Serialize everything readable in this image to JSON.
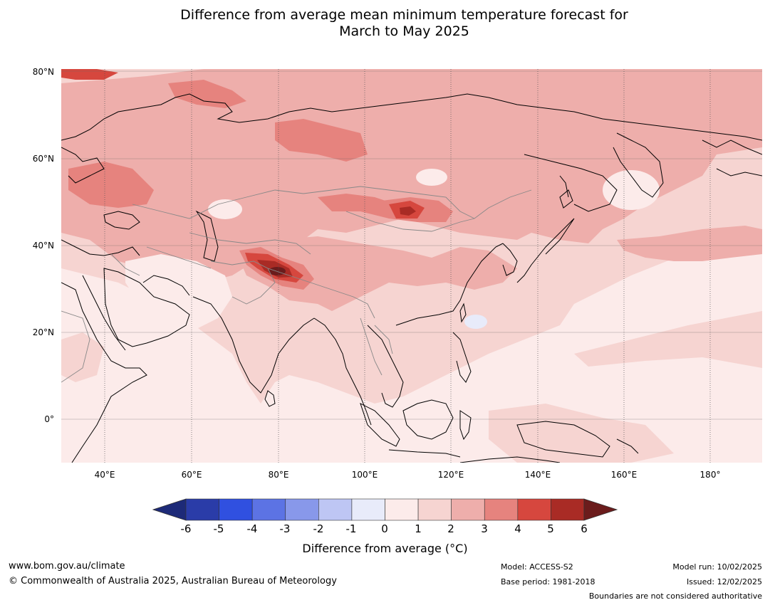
{
  "title": {
    "line1": "Difference from average mean minimum temperature forecast for",
    "line2": "March to May 2025"
  },
  "map": {
    "lat_labels": [
      "80°N",
      "60°N",
      "40°N",
      "20°N",
      "0°"
    ],
    "lon_labels": [
      "40°E",
      "60°E",
      "80°E",
      "100°E",
      "120°E",
      "140°E",
      "160°E",
      "180°"
    ],
    "lat_range": [
      -10,
      80
    ],
    "lon_range": [
      30,
      192
    ],
    "shade_colors": {
      "c0to1": "#fcebea",
      "c1to2": "#f6d4d1",
      "c2to3": "#eeaeab",
      "c3to4": "#e6837e",
      "c4to5": "#d6473e",
      "c5to6": "#a92b25",
      "gt6": "#6b1c1c",
      "cm1to0": "#e8ebfa"
    }
  },
  "colorbar": {
    "ticks": [
      "-6",
      "-5",
      "-4",
      "-3",
      "-2",
      "-1",
      "0",
      "1",
      "2",
      "3",
      "4",
      "5",
      "6"
    ],
    "colors": [
      "#2a3ca8",
      "#3050e0",
      "#5c73e4",
      "#8898ea",
      "#bec6f4",
      "#e8ebfa",
      "#fcebea",
      "#f6d4d1",
      "#eeaeab",
      "#e6837e",
      "#d6473e",
      "#a92b25"
    ],
    "under_color": "#1d2a78",
    "over_color": "#6b1c1c",
    "label": "Difference from average (°C)"
  },
  "footer": {
    "website": "www.bom.gov.au/climate",
    "copyright": "© Commonwealth of Australia 2025, Australian Bureau of Meteorology",
    "model": "Model: ACCESS-S2",
    "base_period": "Base period: 1981-2018",
    "model_run": "Model run: 10/02/2025",
    "issued": "Issued: 12/02/2025",
    "disclaimer": "Boundaries are not considered authoritative"
  }
}
